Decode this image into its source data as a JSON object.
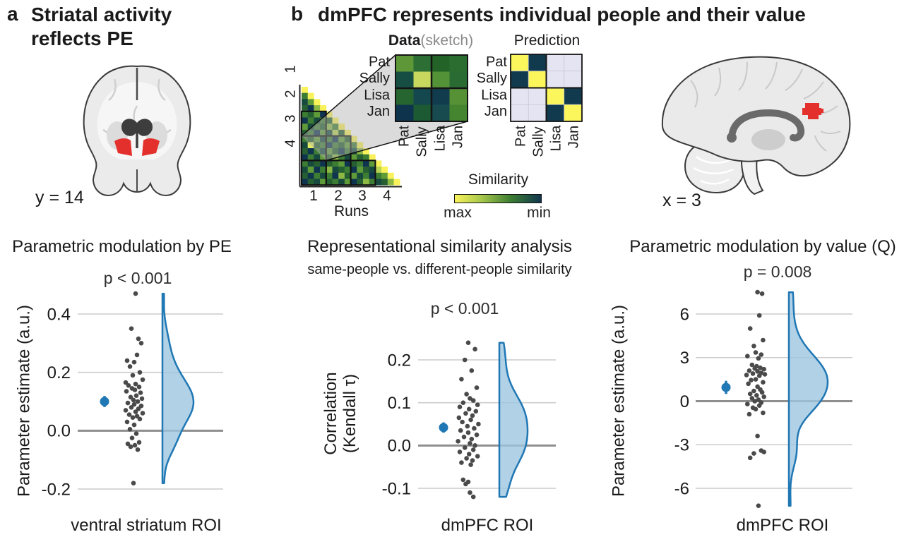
{
  "panel_a": {
    "label": "a",
    "title_line1": "Striatal activity",
    "title_line2": "reflects PE",
    "slice_label": "y = 14"
  },
  "panel_b": {
    "label": "b",
    "title": "dmPFC represents individual people and their value",
    "slice_label": "x = 3",
    "schematic": {
      "data_matrix": {
        "title_main": "Data",
        "title_suffix": "(sketch)",
        "row_labels": [
          "Pat",
          "Sally",
          "Lisa",
          "Jan"
        ],
        "col_labels": [
          "Pat",
          "Sally",
          "Lisa",
          "Jan"
        ],
        "cells": [
          [
            "#5d9737",
            "#2c6e33",
            "#236327",
            "#2b6c31"
          ],
          [
            "#164e43",
            "#c8d75e",
            "#549238",
            "#2a6b33"
          ],
          [
            "#26652f",
            "#15474e",
            "#113c4e",
            "#579135"
          ],
          [
            "#0e344d",
            "#1c5a34",
            "#174b50",
            "#45852f"
          ]
        ]
      },
      "prediction_matrix": {
        "title": "Prediction",
        "row_labels": [
          "Pat",
          "Sally",
          "Lisa",
          "Jan"
        ],
        "col_labels": [
          "Pat",
          "Sally",
          "Lisa",
          "Jan"
        ],
        "cells": [
          [
            "same",
            "pair",
            "diff",
            "diff"
          ],
          [
            "pair",
            "same",
            "diff",
            "diff"
          ],
          [
            "diff",
            "diff",
            "same",
            "pair"
          ],
          [
            "diff",
            "diff",
            "pair",
            "same"
          ]
        ],
        "cell_colors": {
          "same": "#fbf65b",
          "pair": "#123a4e",
          "diff": "#e4e4f2"
        }
      },
      "runs_matrix": {
        "axis_label": "Runs",
        "run_labels": [
          "1",
          "2",
          "3",
          "4"
        ],
        "palette": [
          "#f9f25a",
          "#e3ea63",
          "#b9d355",
          "#8db844",
          "#5f9b39",
          "#3c7d33",
          "#265f31",
          "#17493f",
          "#0f3450"
        ],
        "rows": [
          [
            0
          ],
          [
            5,
            0
          ],
          [
            7,
            4,
            0
          ],
          [
            6,
            8,
            3,
            0
          ],
          [
            5,
            6,
            4,
            8,
            0
          ],
          [
            8,
            5,
            7,
            5,
            6,
            0
          ],
          [
            4,
            7,
            5,
            6,
            3,
            5,
            0
          ],
          [
            6,
            5,
            8,
            4,
            7,
            2,
            6,
            0
          ],
          [
            5,
            6,
            4,
            7,
            5,
            8,
            4,
            6,
            0
          ],
          [
            7,
            1,
            6,
            5,
            8,
            5,
            6,
            4,
            5,
            0
          ],
          [
            6,
            8,
            5,
            7,
            4,
            6,
            8,
            5,
            7,
            3,
            0
          ],
          [
            8,
            5,
            7,
            4,
            6,
            3,
            5,
            7,
            4,
            6,
            5,
            0
          ],
          [
            5,
            7,
            6,
            8,
            6,
            5,
            4,
            8,
            6,
            5,
            8,
            4,
            0
          ],
          [
            7,
            4,
            8,
            5,
            3,
            7,
            6,
            5,
            8,
            4,
            6,
            7,
            2,
            0
          ],
          [
            6,
            8,
            5,
            7,
            5,
            8,
            3,
            6,
            4,
            7,
            5,
            8,
            5,
            4,
            0
          ],
          [
            8,
            6,
            7,
            4,
            6,
            5,
            7,
            4,
            8,
            6,
            3,
            5,
            7,
            6,
            3,
            0
          ]
        ]
      },
      "colorbar": {
        "title": "Similarity",
        "max_label": "max",
        "min_label": "min",
        "gradient": [
          "#f9f25a",
          "#a9c94d",
          "#3c7d33",
          "#12364e"
        ]
      }
    }
  },
  "colors": {
    "accent_blue": "#1f77b4",
    "violin_fill": "#9ec6e0",
    "scatter_dot": "#4a4a4a",
    "grid_line": "#cccccc",
    "zero_line": "#8e8e8e",
    "roi_red": "#e4302d",
    "text": "#1a1a1a"
  },
  "chart_data": [
    {
      "id": "pe_plot",
      "type": "raincloud",
      "title": "Parametric modulation by PE",
      "p_label": "p < 0.001",
      "xlabel": "ventral striatum ROI",
      "ylabel_lines": [
        "Parameter estimate (a.u.)"
      ],
      "ytick_labels": [
        "0.4",
        "0.2",
        "0.0",
        "-0.2"
      ],
      "ytick_values": [
        0.4,
        0.2,
        0.0,
        -0.2
      ],
      "zero_line": 0,
      "mean": 0.1,
      "ci": 0.019,
      "points": [
        [
          0.1,
          0.47
        ],
        [
          -0.2,
          0.35
        ],
        [
          0.3,
          0.315
        ],
        [
          0.5,
          0.3
        ],
        [
          0.2,
          0.26
        ],
        [
          -0.5,
          0.24
        ],
        [
          0.0,
          0.235
        ],
        [
          -0.3,
          0.22
        ],
        [
          0.4,
          0.2
        ],
        [
          -0.1,
          0.19
        ],
        [
          0.6,
          0.175
        ],
        [
          -0.6,
          0.165
        ],
        [
          0.1,
          0.16
        ],
        [
          -0.4,
          0.155
        ],
        [
          0.35,
          0.15
        ],
        [
          -0.15,
          0.145
        ],
        [
          0.05,
          0.14
        ],
        [
          -0.55,
          0.135
        ],
        [
          0.45,
          0.13
        ],
        [
          0.15,
          0.12
        ],
        [
          -0.25,
          0.115
        ],
        [
          0.55,
          0.11
        ],
        [
          -0.05,
          0.105
        ],
        [
          0.25,
          0.1
        ],
        [
          -0.45,
          0.095
        ],
        [
          0.0,
          0.09
        ],
        [
          0.5,
          0.085
        ],
        [
          -0.2,
          0.08
        ],
        [
          0.3,
          0.075
        ],
        [
          -0.6,
          0.07
        ],
        [
          0.1,
          0.065
        ],
        [
          0.6,
          0.06
        ],
        [
          -0.35,
          0.055
        ],
        [
          0.2,
          0.05
        ],
        [
          -0.1,
          0.045
        ],
        [
          0.4,
          0.04
        ],
        [
          -0.5,
          0.03
        ],
        [
          0.0,
          0.02
        ],
        [
          -0.3,
          0.005
        ],
        [
          0.15,
          -0.01
        ],
        [
          -0.15,
          -0.025
        ],
        [
          0.35,
          -0.04
        ],
        [
          -0.45,
          -0.045
        ],
        [
          0.05,
          -0.05
        ],
        [
          -0.25,
          -0.055
        ],
        [
          0.25,
          -0.065
        ],
        [
          -0.05,
          -0.18
        ]
      ]
    },
    {
      "id": "rsa_plot",
      "type": "raincloud",
      "title": "Representational similarity analysis",
      "subtitle": "same-people vs. different-people similarity",
      "p_label": "p < 0.001",
      "xlabel": "dmPFC ROI",
      "ylabel_lines": [
        "Correlation",
        "(Kendall τ)"
      ],
      "ytick_labels": [
        "0.2",
        "0.1",
        "0.0",
        "-0.1"
      ],
      "ytick_values": [
        0.2,
        0.1,
        0.0,
        -0.1
      ],
      "zero_line": 0,
      "mean": 0.042,
      "ci": 0.012,
      "points": [
        [
          0.0,
          0.24
        ],
        [
          0.4,
          0.225
        ],
        [
          -0.2,
          0.2
        ],
        [
          0.2,
          0.175
        ],
        [
          -0.4,
          0.155
        ],
        [
          0.5,
          0.135
        ],
        [
          -0.1,
          0.12
        ],
        [
          0.1,
          0.11
        ],
        [
          0.3,
          0.105
        ],
        [
          -0.3,
          0.1
        ],
        [
          0.55,
          0.095
        ],
        [
          -0.5,
          0.09
        ],
        [
          0.05,
          0.085
        ],
        [
          0.45,
          0.08
        ],
        [
          -0.15,
          0.075
        ],
        [
          0.25,
          0.07
        ],
        [
          -0.55,
          0.065
        ],
        [
          0.15,
          0.06
        ],
        [
          -0.35,
          0.055
        ],
        [
          0.6,
          0.05
        ],
        [
          -0.05,
          0.045
        ],
        [
          0.35,
          0.04
        ],
        [
          -0.45,
          0.035
        ],
        [
          0.0,
          0.03
        ],
        [
          0.5,
          0.025
        ],
        [
          -0.25,
          0.02
        ],
        [
          0.2,
          0.015
        ],
        [
          -0.6,
          0.01
        ],
        [
          0.1,
          0.005
        ],
        [
          0.4,
          0.0
        ],
        [
          -0.2,
          -0.005
        ],
        [
          0.3,
          -0.01
        ],
        [
          -0.5,
          -0.015
        ],
        [
          0.05,
          -0.02
        ],
        [
          0.55,
          -0.025
        ],
        [
          -0.1,
          -0.03
        ],
        [
          0.25,
          -0.035
        ],
        [
          -0.4,
          -0.04
        ],
        [
          0.15,
          -0.045
        ],
        [
          -0.3,
          -0.08
        ],
        [
          0.0,
          -0.085
        ],
        [
          -0.15,
          -0.09
        ],
        [
          0.1,
          -0.11
        ],
        [
          0.3,
          -0.12
        ]
      ]
    },
    {
      "id": "value_plot",
      "type": "raincloud",
      "title": "Parametric modulation by value (Q)",
      "p_label": "p = 0.008",
      "xlabel": "dmPFC ROI",
      "ylabel_lines": [
        "Parameter estimate (a.u.)"
      ],
      "ytick_labels": [
        "6",
        "3",
        "0",
        "-3",
        "-6"
      ],
      "ytick_values": [
        6,
        3,
        0,
        -3,
        -6
      ],
      "zero_line": 0,
      "mean": 0.95,
      "ci": 0.45,
      "points": [
        [
          0.1,
          7.5
        ],
        [
          0.35,
          7.4
        ],
        [
          0.2,
          5.9
        ],
        [
          -0.3,
          5.0
        ],
        [
          0.4,
          4.2
        ],
        [
          -0.1,
          3.8
        ],
        [
          0.0,
          3.35
        ],
        [
          0.3,
          3.2
        ],
        [
          -0.45,
          3.1
        ],
        [
          0.15,
          2.95
        ],
        [
          -0.2,
          2.5
        ],
        [
          0.05,
          2.4
        ],
        [
          0.25,
          2.3
        ],
        [
          -0.05,
          2.25
        ],
        [
          0.45,
          2.2
        ],
        [
          -0.35,
          2.1
        ],
        [
          0.1,
          2.05
        ],
        [
          0.3,
          1.95
        ],
        [
          -0.15,
          1.9
        ],
        [
          0.5,
          1.85
        ],
        [
          -0.5,
          1.8
        ],
        [
          0.2,
          1.75
        ],
        [
          0.0,
          1.5
        ],
        [
          -0.25,
          1.45
        ],
        [
          0.4,
          1.3
        ],
        [
          -0.4,
          1.2
        ],
        [
          0.1,
          1.0
        ],
        [
          0.25,
          0.8
        ],
        [
          -0.1,
          0.7
        ],
        [
          0.35,
          0.6
        ],
        [
          -0.3,
          0.5
        ],
        [
          0.05,
          0.4
        ],
        [
          0.45,
          0.3
        ],
        [
          -0.2,
          0.2
        ],
        [
          0.15,
          0.1
        ],
        [
          -0.05,
          0.0
        ],
        [
          0.3,
          -0.1
        ],
        [
          -0.45,
          -0.2
        ],
        [
          0.2,
          -0.3
        ],
        [
          -0.15,
          -0.45
        ],
        [
          0.0,
          -0.55
        ],
        [
          0.4,
          -0.8
        ],
        [
          -0.35,
          -0.9
        ],
        [
          0.1,
          -2.4
        ],
        [
          0.3,
          -3.4
        ],
        [
          0.45,
          -3.5
        ],
        [
          -0.1,
          -3.6
        ],
        [
          -0.3,
          -3.9
        ],
        [
          0.15,
          -7.2
        ]
      ]
    }
  ]
}
